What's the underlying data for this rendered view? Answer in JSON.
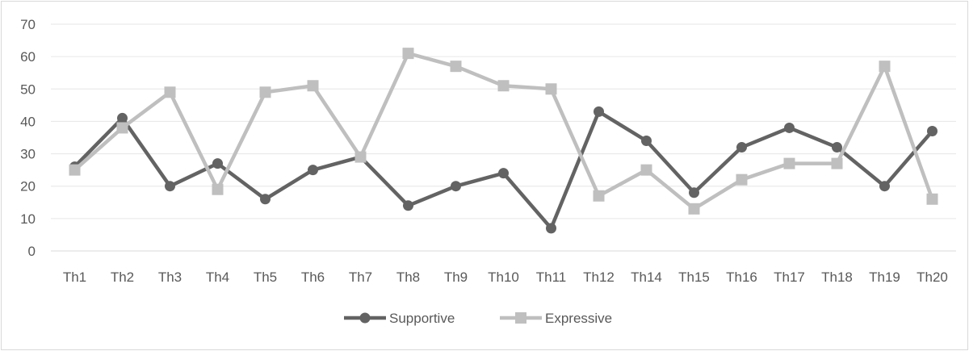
{
  "chart_data": {
    "type": "line",
    "title": "",
    "xlabel": "",
    "ylabel": "",
    "ylim": [
      0,
      70
    ],
    "yticks": [
      0,
      10,
      20,
      30,
      40,
      50,
      60,
      70
    ],
    "grid": true,
    "legend_position": "bottom",
    "categories": [
      "Th1",
      "Th2",
      "Th3",
      "Th4",
      "Th5",
      "Th6",
      "Th7",
      "Th8",
      "Th9",
      "Th10",
      "Th11",
      "Th12",
      "Th14",
      "Th15",
      "Th16",
      "Th17",
      "Th18",
      "Th19",
      "Th20"
    ],
    "series": [
      {
        "name": "Supportive",
        "marker": "circle",
        "color": "#636363",
        "values": [
          26,
          41,
          20,
          27,
          16,
          25,
          29,
          14,
          20,
          24,
          7,
          43,
          34,
          18,
          32,
          38,
          32,
          20,
          37
        ]
      },
      {
        "name": "Expressive",
        "marker": "square",
        "color": "#bfbfbf",
        "values": [
          25,
          38,
          49,
          19,
          49,
          51,
          29,
          61,
          57,
          51,
          50,
          17,
          25,
          13,
          22,
          27,
          27,
          57,
          16
        ]
      }
    ]
  }
}
